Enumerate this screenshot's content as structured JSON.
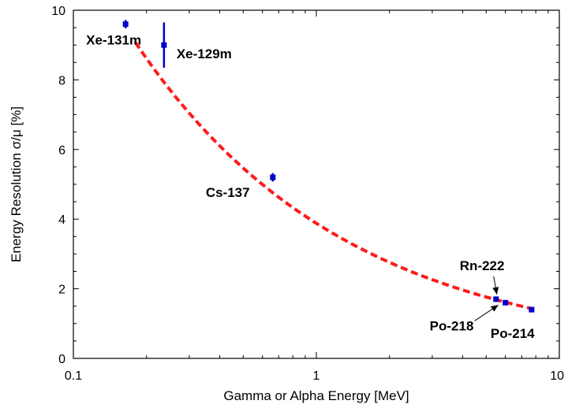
{
  "chart_data": {
    "type": "scatter",
    "title": "",
    "xlabel": "Gamma or Alpha Energy [MeV]",
    "ylabel": "Energy Resolution σ/μ [%]",
    "xscale": "log",
    "xlim": [
      0.1,
      10
    ],
    "ylim": [
      0,
      10
    ],
    "x_ticks": [
      "0.1",
      "1",
      "10"
    ],
    "y_ticks": [
      "0",
      "2",
      "4",
      "6",
      "8",
      "10"
    ],
    "grid": false,
    "points": [
      {
        "label": "Xe-131m",
        "x": 0.164,
        "y": 9.6,
        "yerr": 0.12
      },
      {
        "label": "Xe-129m",
        "x": 0.236,
        "y": 9.0,
        "yerr": 0.65
      },
      {
        "label": "Cs-137",
        "x": 0.662,
        "y": 5.2,
        "yerr": 0.12
      },
      {
        "label": "Rn-222",
        "x": 5.49,
        "y": 1.7,
        "yerr": 0
      },
      {
        "label": "Po-218",
        "x": 6.0,
        "y": 1.6,
        "yerr": 0
      },
      {
        "label": "Po-214",
        "x": 7.69,
        "y": 1.4,
        "yerr": 0
      }
    ],
    "fit": {
      "style": "dashed",
      "color": "#ff1a1a",
      "x_range": [
        0.18,
        7.69
      ],
      "model": "y = a / sqrt(x) + b",
      "a": 3.83,
      "b": 0.05
    },
    "colors": {
      "points": "#0000cc",
      "fit": "#ff1a1a"
    }
  }
}
